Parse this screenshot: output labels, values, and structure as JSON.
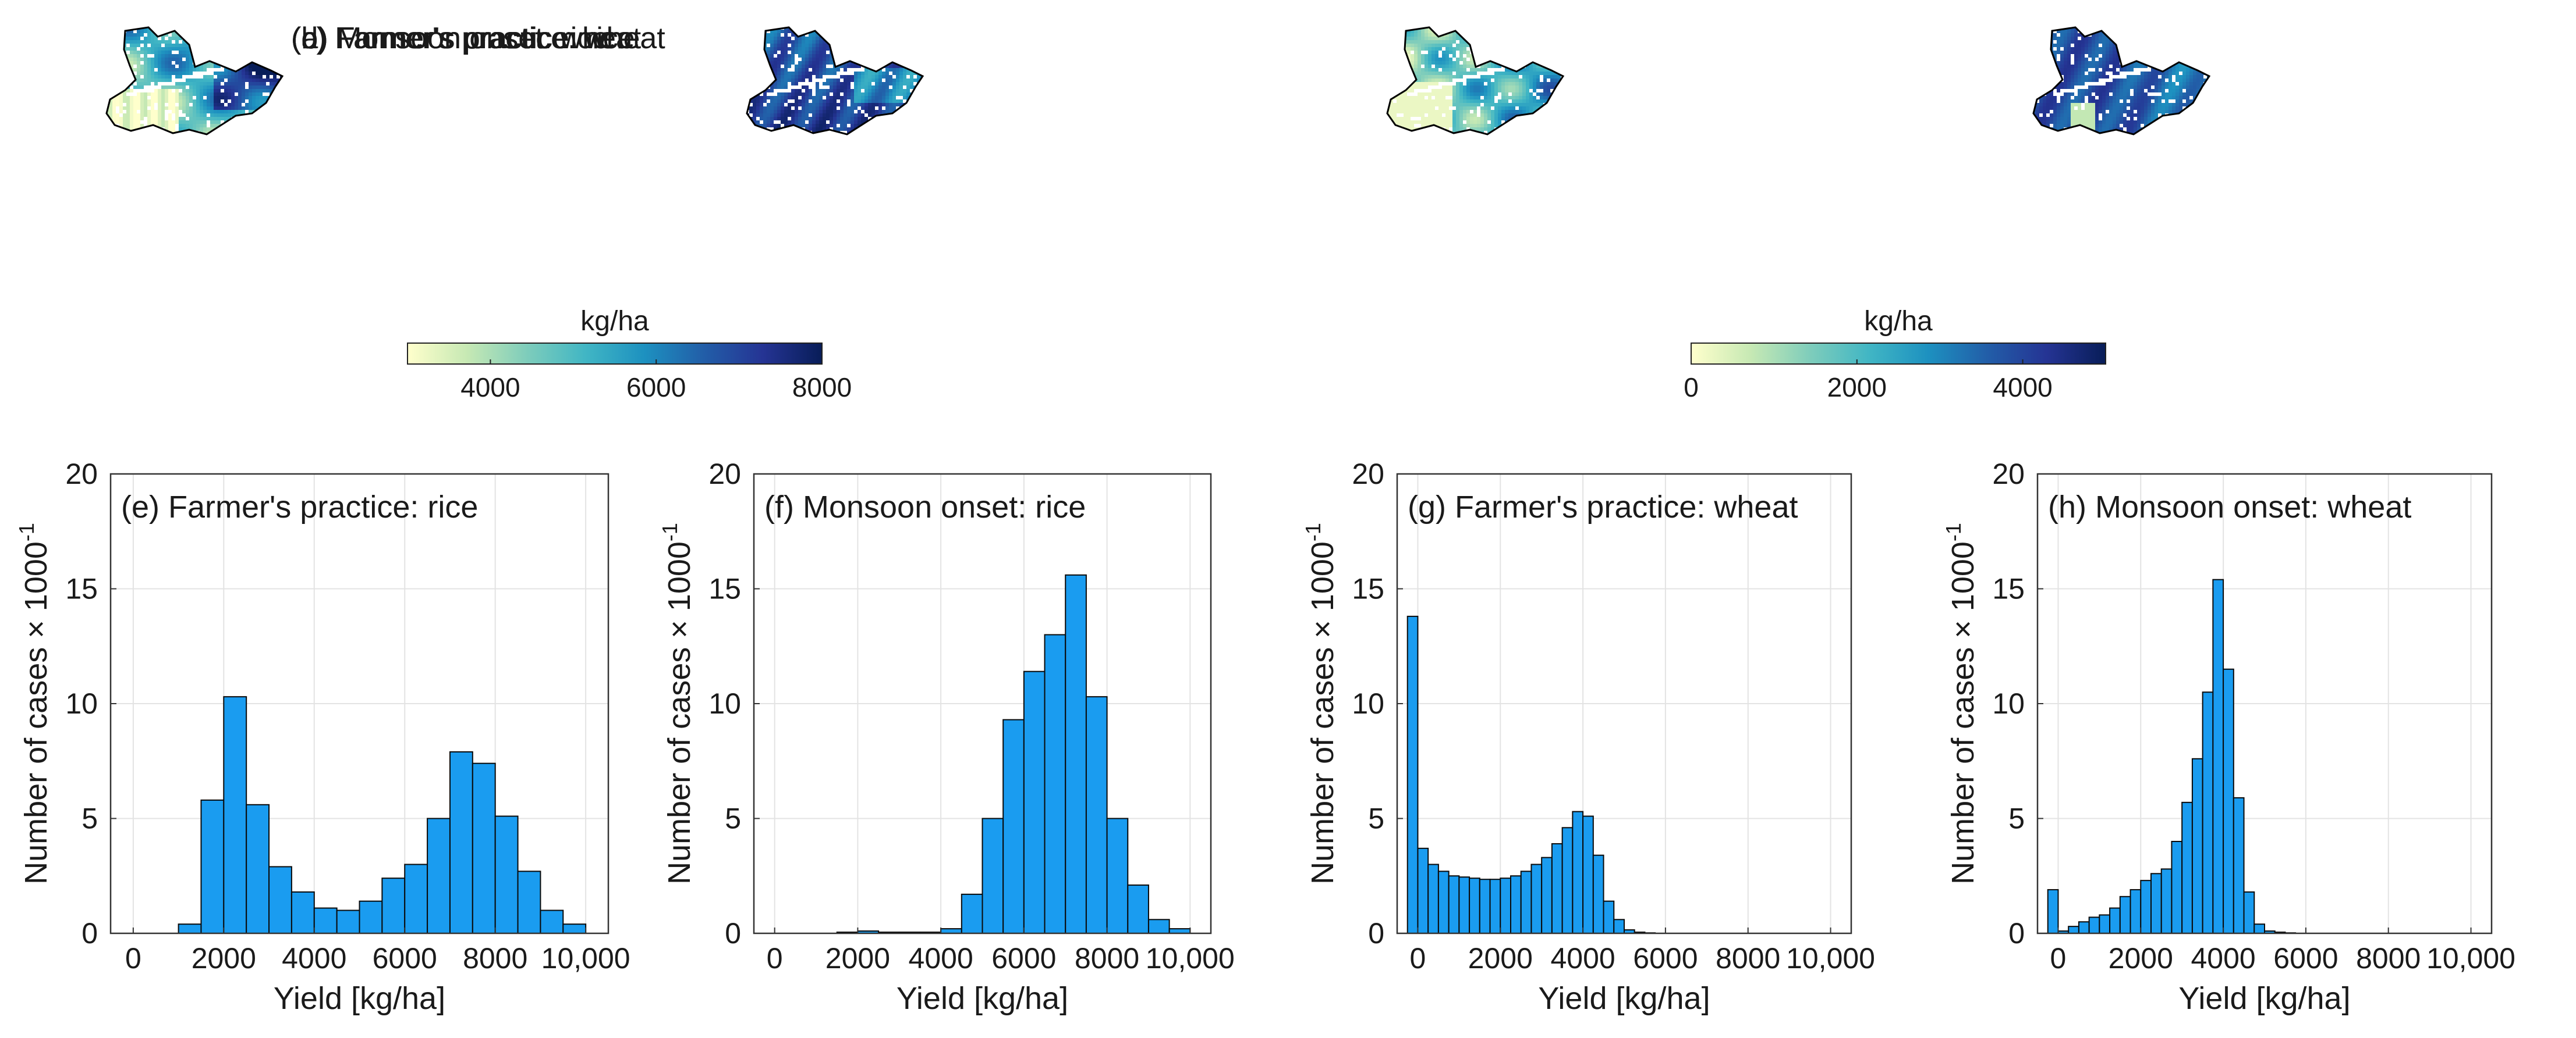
{
  "maps": [
    {
      "title": "(a) Farmer's practice: rice",
      "crop": "rice",
      "scenario": "farmer"
    },
    {
      "title": "(b) Monsoon onset: rice",
      "crop": "rice",
      "scenario": "monsoon"
    },
    {
      "title": "(c) Farmer's practice: wheat",
      "crop": "wheat",
      "scenario": "farmer"
    },
    {
      "title": "(d) Monsoon onset: wheat",
      "crop": "wheat",
      "scenario": "monsoon"
    }
  ],
  "colorbars": [
    {
      "label": "kg/ha",
      "range": [
        3000,
        8000
      ],
      "ticks": [
        "4000",
        "6000",
        "8000"
      ],
      "tick_values": [
        4000,
        6000,
        8000
      ]
    },
    {
      "label": "kg/ha",
      "range": [
        0,
        5000
      ],
      "ticks": [
        "0",
        "2000",
        "4000"
      ],
      "tick_values": [
        0,
        2000,
        4000
      ]
    }
  ],
  "colormap": [
    "#ffffcc",
    "#c7e9b4",
    "#7fcdbb",
    "#41b6c4",
    "#1d91c0",
    "#225ea8",
    "#253494",
    "#081d58"
  ],
  "colors": {
    "bar_fill": "#1a9cf0",
    "bar_edge": "#0a0a0a",
    "grid": "#e3e3e3",
    "axis": "#333333"
  },
  "chart_data": [
    {
      "type": "bar",
      "title": "(e) Farmer's practice: rice",
      "xlabel": "Yield [kg/ha]",
      "ylabel": "Number of cases × 1000",
      "ylabel_exp": "-1",
      "xlim": [
        -500,
        10500
      ],
      "ylim": [
        0,
        20
      ],
      "xticks": [
        "0",
        "2000",
        "4000",
        "6000",
        "8000",
        "10,000"
      ],
      "xtick_values": [
        0,
        2000,
        4000,
        6000,
        8000,
        10000
      ],
      "yticks": [
        "0",
        "5",
        "10",
        "15",
        "20"
      ],
      "ytick_values": [
        0,
        5,
        10,
        15,
        20
      ],
      "bin_width": 500,
      "bin_starts": [
        1000,
        1500,
        2000,
        2500,
        3000,
        3500,
        4000,
        4500,
        5000,
        5500,
        6000,
        6500,
        7000,
        7500,
        8000,
        8500,
        9000,
        9500
      ],
      "values": [
        0.4,
        5.8,
        10.3,
        5.6,
        2.9,
        1.8,
        1.1,
        1.0,
        1.4,
        2.4,
        3.0,
        5.0,
        7.9,
        7.4,
        5.1,
        2.7,
        1.0,
        0.4
      ],
      "grid": true
    },
    {
      "type": "bar",
      "title": "(f) Monsoon onset: rice",
      "xlabel": "Yield [kg/ha]",
      "ylabel": "Number of cases × 1000",
      "ylabel_exp": "-1",
      "xlim": [
        -500,
        10500
      ],
      "ylim": [
        0,
        20
      ],
      "xticks": [
        "0",
        "2000",
        "4000",
        "6000",
        "8000",
        "10,000"
      ],
      "xtick_values": [
        0,
        2000,
        4000,
        6000,
        8000,
        10000
      ],
      "yticks": [
        "0",
        "5",
        "10",
        "15",
        "20"
      ],
      "ytick_values": [
        0,
        5,
        10,
        15,
        20
      ],
      "bin_width": 500,
      "bin_starts": [
        1500,
        2000,
        2500,
        3000,
        3500,
        4000,
        4500,
        5000,
        5500,
        6000,
        6500,
        7000,
        7500,
        8000,
        8500,
        9000,
        9500
      ],
      "values": [
        0.05,
        0.1,
        0.05,
        0.05,
        0.05,
        0.2,
        1.7,
        5.0,
        9.3,
        11.4,
        13.0,
        15.6,
        10.3,
        5.0,
        2.1,
        0.6,
        0.2
      ],
      "grid": true
    },
    {
      "type": "bar",
      "title": "(g) Farmer's practice: wheat",
      "xlabel": "Yield [kg/ha]",
      "ylabel": "Number of cases × 1000",
      "ylabel_exp": "-1",
      "xlim": [
        -500,
        10500
      ],
      "ylim": [
        0,
        20
      ],
      "xticks": [
        "0",
        "2000",
        "4000",
        "6000",
        "8000",
        "10,000"
      ],
      "xtick_values": [
        0,
        2000,
        4000,
        6000,
        8000,
        10000
      ],
      "yticks": [
        "0",
        "5",
        "10",
        "15",
        "20"
      ],
      "ytick_values": [
        0,
        5,
        10,
        15,
        20
      ],
      "bin_width": 250,
      "bin_starts": [
        -250,
        0,
        250,
        500,
        750,
        1000,
        1250,
        1500,
        1750,
        2000,
        2250,
        2500,
        2750,
        3000,
        3250,
        3500,
        3750,
        4000,
        4250,
        4500,
        4750,
        5000,
        5250,
        5500
      ],
      "values": [
        13.8,
        3.7,
        3.0,
        2.7,
        2.5,
        2.45,
        2.4,
        2.35,
        2.35,
        2.4,
        2.5,
        2.7,
        3.0,
        3.3,
        3.9,
        4.6,
        5.3,
        5.1,
        3.4,
        1.4,
        0.6,
        0.15,
        0.05,
        0.02
      ],
      "grid": true
    },
    {
      "type": "bar",
      "title": "(h) Monsoon onset: wheat",
      "xlabel": "Yield [kg/ha]",
      "ylabel": "Number of cases × 1000",
      "ylabel_exp": "-1",
      "xlim": [
        -500,
        10500
      ],
      "ylim": [
        0,
        20
      ],
      "xticks": [
        "0",
        "2000",
        "4000",
        "6000",
        "8000",
        "10,000"
      ],
      "xtick_values": [
        0,
        2000,
        4000,
        6000,
        8000,
        10000
      ],
      "yticks": [
        "0",
        "5",
        "10",
        "15",
        "20"
      ],
      "ytick_values": [
        0,
        5,
        10,
        15,
        20
      ],
      "bin_width": 250,
      "bin_starts": [
        -250,
        0,
        250,
        500,
        750,
        1000,
        1250,
        1500,
        1750,
        2000,
        2250,
        2500,
        2750,
        3000,
        3250,
        3500,
        3750,
        4000,
        4250,
        4500,
        4750,
        5000,
        5250,
        5500
      ],
      "values": [
        1.9,
        0.1,
        0.3,
        0.5,
        0.7,
        0.8,
        1.1,
        1.6,
        1.9,
        2.3,
        2.6,
        2.8,
        4.0,
        5.7,
        7.6,
        10.5,
        15.4,
        11.5,
        5.9,
        1.8,
        0.4,
        0.1,
        0.05,
        0.02
      ],
      "grid": true
    }
  ]
}
